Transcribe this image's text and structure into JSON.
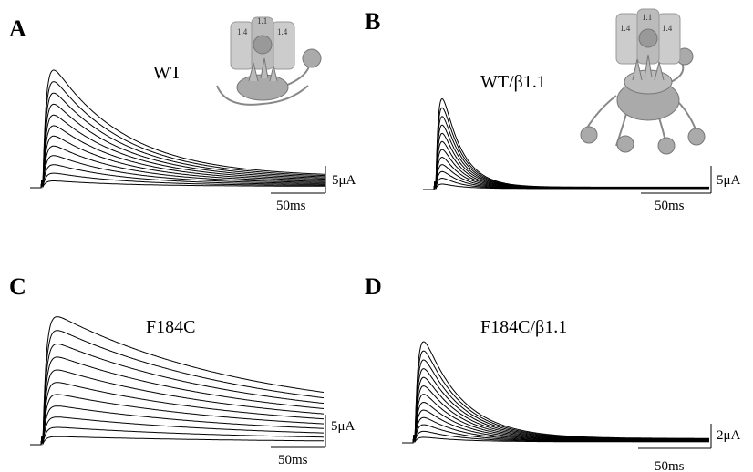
{
  "panels": [
    {
      "label": "A",
      "name": "WT",
      "current_scale": "5μA",
      "time_scale": "50ms",
      "channel_labels": [
        "1.4",
        "1.1",
        "1.4"
      ]
    },
    {
      "label": "B",
      "name": "WT/β1.1",
      "current_scale": "5μA",
      "time_scale": "50ms",
      "channel_labels": [
        "1.4",
        "1.1",
        "1.4"
      ]
    },
    {
      "label": "C",
      "name": "F184C",
      "current_scale": "5μA",
      "time_scale": "50ms"
    },
    {
      "label": "D",
      "name": "F184C/β1.1",
      "current_scale": "2μA",
      "time_scale": "50ms"
    }
  ]
}
